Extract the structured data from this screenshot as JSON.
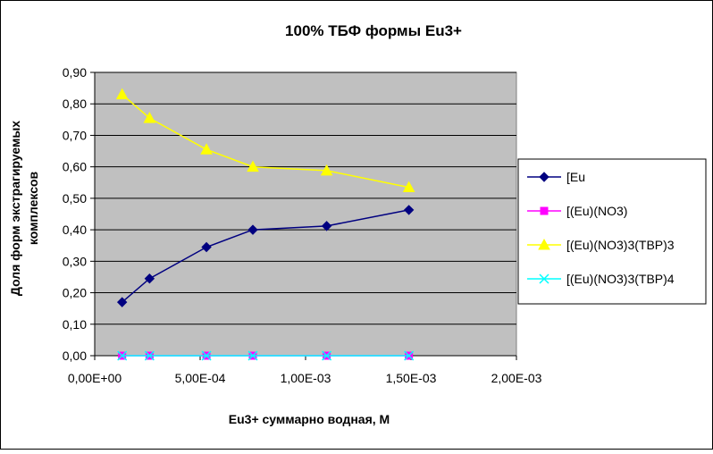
{
  "chart_data": {
    "type": "line",
    "title": "100%  ТБФ  формы Eu3+",
    "xlabel": "Eu3+ суммарно   водная, М",
    "ylabel_lines": [
      "Доля форм экстрагируемых",
      "комплексов"
    ],
    "xlim": [
      0,
      0.002
    ],
    "ylim": [
      0,
      0.9
    ],
    "x_ticks": [
      0,
      0.0005,
      0.001,
      0.0015,
      0.002
    ],
    "x_tick_labels": [
      "0,00E+00",
      "5,00E-04",
      "1,00E-03",
      "1,50E-03",
      "2,00E-03"
    ],
    "y_ticks": [
      0,
      0.1,
      0.2,
      0.3,
      0.4,
      0.5,
      0.6,
      0.7,
      0.8,
      0.9
    ],
    "y_tick_labels": [
      "0,00",
      "0,10",
      "0,20",
      "0,30",
      "0,40",
      "0,50",
      "0,60",
      "0,70",
      "0,80",
      "0,90"
    ],
    "grid": true,
    "legend_position": "right",
    "plot_background": "#c0c0c0",
    "x": [
      0.00013,
      0.00026,
      0.00053,
      0.00075,
      0.0011,
      0.00149
    ],
    "series": [
      {
        "name": "[Eu",
        "color": "#000080",
        "marker": "diamond",
        "values": [
          0.17,
          0.245,
          0.345,
          0.4,
          0.412,
          0.463
        ]
      },
      {
        "name": "[(Eu)(NO3)",
        "color": "#ff00ff",
        "marker": "square",
        "values": [
          0.0,
          0.0,
          0.0,
          0.0,
          0.0,
          0.0
        ]
      },
      {
        "name": "[(Eu)(NO3)3(TBP)3",
        "color": "#ffff00",
        "marker": "triangle",
        "values": [
          0.83,
          0.755,
          0.655,
          0.6,
          0.588,
          0.535
        ]
      },
      {
        "name": "[(Eu)(NO3)3(TBP)4",
        "color": "#00ffff",
        "marker": "x",
        "values": [
          0.0,
          0.0,
          0.0,
          0.0,
          0.0,
          0.0
        ]
      }
    ]
  }
}
